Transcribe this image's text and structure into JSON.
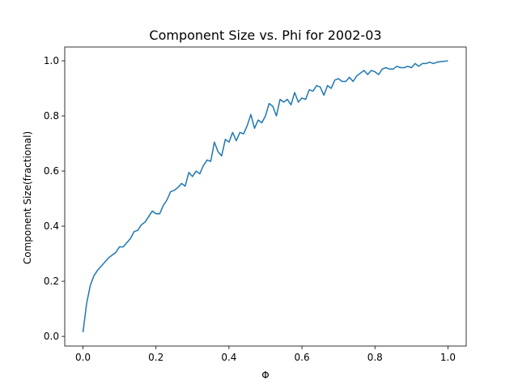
{
  "chart_data": {
    "type": "line",
    "title": "Component Size vs. Phi for 2002-03",
    "xlabel": "Φ",
    "ylabel": "Component Size(fractional)",
    "xlim": [
      -0.05,
      1.05
    ],
    "ylim": [
      -0.035,
      1.05
    ],
    "xticks": [
      0.0,
      0.2,
      0.4,
      0.6,
      0.8,
      1.0
    ],
    "xtick_labels": [
      "0.0",
      "0.2",
      "0.4",
      "0.6",
      "0.8",
      "1.0"
    ],
    "yticks": [
      0.0,
      0.2,
      0.4,
      0.6,
      0.8,
      1.0
    ],
    "ytick_labels": [
      "0.0",
      "0.2",
      "0.4",
      "0.6",
      "0.8",
      "1.0"
    ],
    "grid": false,
    "line_color": "#1f77b4",
    "series": [
      {
        "x": [
          0.0,
          0.01,
          0.02,
          0.03,
          0.04,
          0.05,
          0.06,
          0.07,
          0.08,
          0.09,
          0.1,
          0.11,
          0.12,
          0.13,
          0.14,
          0.15,
          0.16,
          0.17,
          0.18,
          0.19,
          0.2,
          0.21,
          0.22,
          0.23,
          0.24,
          0.25,
          0.26,
          0.27,
          0.28,
          0.29,
          0.3,
          0.31,
          0.32,
          0.33,
          0.34,
          0.35,
          0.36,
          0.37,
          0.38,
          0.39,
          0.4,
          0.41,
          0.42,
          0.43,
          0.44,
          0.45,
          0.46,
          0.47,
          0.48,
          0.49,
          0.5,
          0.51,
          0.52,
          0.53,
          0.54,
          0.55,
          0.56,
          0.57,
          0.58,
          0.59,
          0.6,
          0.61,
          0.62,
          0.63,
          0.64,
          0.65,
          0.66,
          0.67,
          0.68,
          0.69,
          0.7,
          0.71,
          0.72,
          0.73,
          0.74,
          0.75,
          0.76,
          0.77,
          0.78,
          0.79,
          0.8,
          0.81,
          0.82,
          0.83,
          0.84,
          0.85,
          0.86,
          0.87,
          0.88,
          0.89,
          0.9,
          0.91,
          0.92,
          0.93,
          0.94,
          0.95,
          0.96,
          0.97,
          0.98,
          0.99,
          1.0
        ],
        "values": [
          0.015,
          0.12,
          0.185,
          0.22,
          0.24,
          0.255,
          0.27,
          0.285,
          0.295,
          0.305,
          0.325,
          0.325,
          0.34,
          0.355,
          0.38,
          0.385,
          0.405,
          0.415,
          0.435,
          0.455,
          0.445,
          0.445,
          0.475,
          0.495,
          0.525,
          0.53,
          0.54,
          0.555,
          0.545,
          0.595,
          0.58,
          0.6,
          0.59,
          0.62,
          0.64,
          0.635,
          0.705,
          0.67,
          0.655,
          0.715,
          0.705,
          0.74,
          0.71,
          0.74,
          0.735,
          0.765,
          0.805,
          0.755,
          0.785,
          0.775,
          0.8,
          0.845,
          0.835,
          0.8,
          0.86,
          0.85,
          0.86,
          0.84,
          0.885,
          0.85,
          0.865,
          0.86,
          0.895,
          0.89,
          0.91,
          0.905,
          0.875,
          0.91,
          0.9,
          0.93,
          0.935,
          0.925,
          0.925,
          0.94,
          0.925,
          0.945,
          0.955,
          0.965,
          0.95,
          0.965,
          0.96,
          0.95,
          0.97,
          0.975,
          0.97,
          0.97,
          0.98,
          0.975,
          0.975,
          0.98,
          0.975,
          0.99,
          0.98,
          0.99,
          0.99,
          0.995,
          0.99,
          0.995,
          0.997,
          0.998,
          1.0
        ]
      }
    ]
  }
}
